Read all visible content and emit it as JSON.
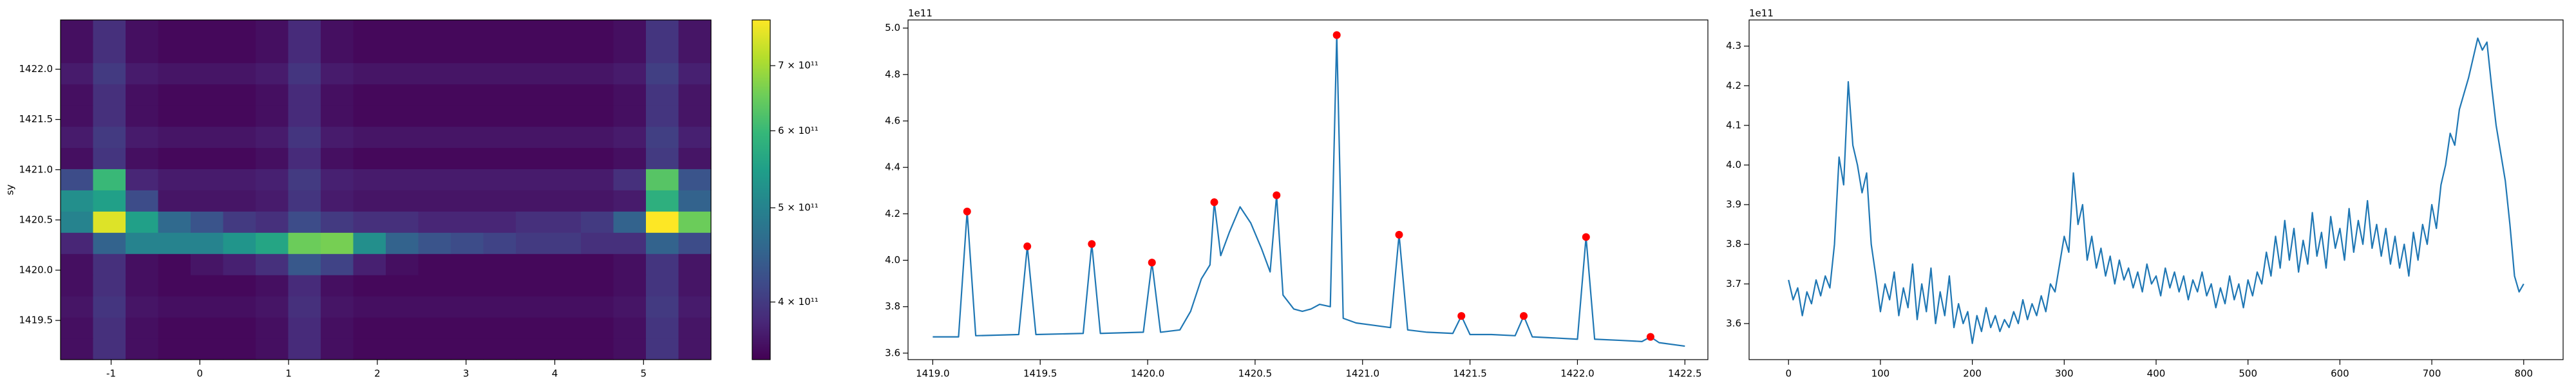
{
  "chart_data": [
    {
      "type": "heatmap",
      "ylabel": "sy",
      "colormap": "viridis",
      "clog": true,
      "xlim": [
        -1.57,
        5.76
      ],
      "ylim": [
        1419.11,
        1422.49
      ],
      "xticks": [
        -1,
        0,
        1,
        2,
        3,
        4,
        5
      ],
      "yticks": [
        1419.5,
        {
          "value": 1420,
          "label": "1420.0"
        },
        1420.5,
        {
          "value": 1421,
          "label": "1421.0"
        },
        1421.5,
        {
          "value": 1422,
          "label": "1422.0"
        }
      ],
      "clim": [
        349000000000.0,
        780000000000.0
      ],
      "cticks": [
        {
          "value": 400000000000.0,
          "label": "4 × 10¹¹"
        },
        {
          "value": 500000000000.0,
          "label": "5 × 10¹¹"
        },
        {
          "value": 600000000000.0,
          "label": "6 × 10¹¹"
        },
        {
          "value": 700000000000.0,
          "label": "7 × 10¹¹"
        }
      ],
      "xbins": [
        -1.57,
        -1.2035,
        -0.837,
        -0.4705,
        -0.104,
        0.2625,
        0.629,
        0.9955,
        1.362,
        1.7285,
        2.095,
        2.4615,
        2.828,
        3.1945,
        3.561,
        3.9275,
        4.294,
        4.6605,
        5.027,
        5.3935,
        5.76
      ],
      "ybins": [
        1419.11,
        1419.321,
        1419.532,
        1419.743,
        1419.954,
        1420.165,
        1420.376,
        1420.587,
        1420.798,
        1421.009,
        1421.22,
        1421.431,
        1421.642,
        1421.853,
        1422.064,
        1422.275,
        1422.49
      ],
      "z": [
        [
          360000000000.0,
          390000000000.0,
          360000000000.0,
          355000000000.0,
          355000000000.0,
          355000000000.0,
          360000000000.0,
          385000000000.0,
          360000000000.0,
          355000000000.0,
          355000000000.0,
          355000000000.0,
          355000000000.0,
          355000000000.0,
          355000000000.0,
          355000000000.0,
          355000000000.0,
          360000000000.0,
          395000000000.0,
          365000000000.0
        ],
        [
          360000000000.0,
          390000000000.0,
          360000000000.0,
          355000000000.0,
          355000000000.0,
          355000000000.0,
          360000000000.0,
          385000000000.0,
          360000000000.0,
          355000000000.0,
          355000000000.0,
          355000000000.0,
          355000000000.0,
          355000000000.0,
          355000000000.0,
          355000000000.0,
          355000000000.0,
          360000000000.0,
          395000000000.0,
          365000000000.0
        ],
        [
          365000000000.0,
          395000000000.0,
          365000000000.0,
          360000000000.0,
          360000000000.0,
          360000000000.0,
          365000000000.0,
          390000000000.0,
          365000000000.0,
          360000000000.0,
          360000000000.0,
          360000000000.0,
          360000000000.0,
          360000000000.0,
          360000000000.0,
          360000000000.0,
          360000000000.0,
          365000000000.0,
          400000000000.0,
          370000000000.0
        ],
        [
          360000000000.0,
          390000000000.0,
          360000000000.0,
          355000000000.0,
          355000000000.0,
          355000000000.0,
          360000000000.0,
          385000000000.0,
          360000000000.0,
          355000000000.0,
          355000000000.0,
          355000000000.0,
          355000000000.0,
          355000000000.0,
          355000000000.0,
          355000000000.0,
          355000000000.0,
          360000000000.0,
          395000000000.0,
          365000000000.0
        ],
        [
          360000000000.0,
          390000000000.0,
          360000000000.0,
          355000000000.0,
          365000000000.0,
          375000000000.0,
          390000000000.0,
          435000000000.0,
          410000000000.0,
          375000000000.0,
          360000000000.0,
          355000000000.0,
          355000000000.0,
          355000000000.0,
          355000000000.0,
          355000000000.0,
          355000000000.0,
          360000000000.0,
          395000000000.0,
          365000000000.0
        ],
        [
          380000000000.0,
          450000000000.0,
          500000000000.0,
          500000000000.0,
          500000000000.0,
          530000000000.0,
          560000000000.0,
          650000000000.0,
          660000000000.0,
          520000000000.0,
          450000000000.0,
          430000000000.0,
          420000000000.0,
          410000000000.0,
          400000000000.0,
          400000000000.0,
          390000000000.0,
          390000000000.0,
          450000000000.0,
          420000000000.0
        ],
        [
          500000000000.0,
          750000000000.0,
          550000000000.0,
          460000000000.0,
          430000000000.0,
          400000000000.0,
          390000000000.0,
          420000000000.0,
          400000000000.0,
          390000000000.0,
          390000000000.0,
          380000000000.0,
          380000000000.0,
          380000000000.0,
          390000000000.0,
          390000000000.0,
          400000000000.0,
          450000000000.0,
          780000000000.0,
          650000000000.0
        ],
        [
          520000000000.0,
          550000000000.0,
          420000000000.0,
          365000000000.0,
          365000000000.0,
          365000000000.0,
          370000000000.0,
          395000000000.0,
          370000000000.0,
          365000000000.0,
          365000000000.0,
          365000000000.0,
          365000000000.0,
          365000000000.0,
          365000000000.0,
          365000000000.0,
          365000000000.0,
          370000000000.0,
          580000000000.0,
          450000000000.0
        ],
        [
          420000000000.0,
          600000000000.0,
          380000000000.0,
          370000000000.0,
          370000000000.0,
          370000000000.0,
          375000000000.0,
          400000000000.0,
          375000000000.0,
          370000000000.0,
          370000000000.0,
          370000000000.0,
          370000000000.0,
          370000000000.0,
          370000000000.0,
          370000000000.0,
          370000000000.0,
          390000000000.0,
          630000000000.0,
          430000000000.0
        ],
        [
          360000000000.0,
          395000000000.0,
          360000000000.0,
          355000000000.0,
          355000000000.0,
          355000000000.0,
          360000000000.0,
          385000000000.0,
          360000000000.0,
          355000000000.0,
          355000000000.0,
          355000000000.0,
          355000000000.0,
          355000000000.0,
          355000000000.0,
          355000000000.0,
          355000000000.0,
          360000000000.0,
          400000000000.0,
          365000000000.0
        ],
        [
          370000000000.0,
          400000000000.0,
          370000000000.0,
          365000000000.0,
          365000000000.0,
          365000000000.0,
          370000000000.0,
          395000000000.0,
          370000000000.0,
          365000000000.0,
          365000000000.0,
          365000000000.0,
          365000000000.0,
          365000000000.0,
          365000000000.0,
          365000000000.0,
          365000000000.0,
          370000000000.0,
          405000000000.0,
          375000000000.0
        ],
        [
          360000000000.0,
          390000000000.0,
          360000000000.0,
          355000000000.0,
          355000000000.0,
          355000000000.0,
          360000000000.0,
          385000000000.0,
          360000000000.0,
          355000000000.0,
          355000000000.0,
          355000000000.0,
          355000000000.0,
          355000000000.0,
          355000000000.0,
          355000000000.0,
          355000000000.0,
          360000000000.0,
          395000000000.0,
          365000000000.0
        ],
        [
          360000000000.0,
          390000000000.0,
          360000000000.0,
          355000000000.0,
          355000000000.0,
          355000000000.0,
          360000000000.0,
          385000000000.0,
          360000000000.0,
          355000000000.0,
          355000000000.0,
          355000000000.0,
          355000000000.0,
          355000000000.0,
          355000000000.0,
          355000000000.0,
          355000000000.0,
          360000000000.0,
          395000000000.0,
          365000000000.0
        ],
        [
          370000000000.0,
          400000000000.0,
          370000000000.0,
          365000000000.0,
          365000000000.0,
          365000000000.0,
          370000000000.0,
          395000000000.0,
          370000000000.0,
          365000000000.0,
          365000000000.0,
          365000000000.0,
          365000000000.0,
          365000000000.0,
          365000000000.0,
          365000000000.0,
          365000000000.0,
          370000000000.0,
          405000000000.0,
          375000000000.0
        ],
        [
          360000000000.0,
          390000000000.0,
          360000000000.0,
          355000000000.0,
          355000000000.0,
          355000000000.0,
          360000000000.0,
          385000000000.0,
          360000000000.0,
          355000000000.0,
          355000000000.0,
          355000000000.0,
          355000000000.0,
          355000000000.0,
          355000000000.0,
          355000000000.0,
          355000000000.0,
          360000000000.0,
          395000000000.0,
          365000000000.0
        ],
        [
          360000000000.0,
          390000000000.0,
          360000000000.0,
          355000000000.0,
          355000000000.0,
          355000000000.0,
          360000000000.0,
          385000000000.0,
          360000000000.0,
          355000000000.0,
          355000000000.0,
          355000000000.0,
          355000000000.0,
          355000000000.0,
          355000000000.0,
          355000000000.0,
          355000000000.0,
          360000000000.0,
          395000000000.0,
          365000000000.0
        ]
      ]
    },
    {
      "type": "line",
      "offset_label": "1e11",
      "color": "#1f77b4",
      "peak_color": "#ff0000",
      "xlim": [
        1418.885,
        1422.607
      ],
      "ylim": [
        3.572,
        5.035
      ],
      "xticks": [
        {
          "value": 1419,
          "label": "1419.0"
        },
        1419.5,
        {
          "value": 1420,
          "label": "1420.0"
        },
        1420.5,
        {
          "value": 1421,
          "label": "1421.0"
        },
        1421.5,
        {
          "value": 1422,
          "label": "1422.0"
        },
        1422.5
      ],
      "yticks": [
        3.6,
        3.8,
        {
          "value": 4,
          "label": "4.0"
        },
        4.2,
        4.4,
        4.6,
        4.8,
        {
          "value": 5,
          "label": "5.0"
        }
      ],
      "x": [
        1419.0,
        1419.12,
        1419.16,
        1419.2,
        1419.4,
        1419.44,
        1419.48,
        1419.7,
        1419.74,
        1419.78,
        1419.98,
        1420.02,
        1420.06,
        1420.15,
        1420.2,
        1420.25,
        1420.29,
        1420.31,
        1420.34,
        1420.38,
        1420.43,
        1420.48,
        1420.53,
        1420.57,
        1420.6,
        1420.63,
        1420.68,
        1420.72,
        1420.76,
        1420.8,
        1420.85,
        1420.88,
        1420.91,
        1420.97,
        1421.05,
        1421.13,
        1421.17,
        1421.21,
        1421.3,
        1421.42,
        1421.46,
        1421.5,
        1421.6,
        1421.71,
        1421.75,
        1421.79,
        1421.9,
        1422.0,
        1422.04,
        1422.08,
        1422.2,
        1422.3,
        1422.34,
        1422.38,
        1422.5
      ],
      "values": [
        3.67,
        3.67,
        4.21,
        3.675,
        3.68,
        4.06,
        3.68,
        3.685,
        4.07,
        3.685,
        3.69,
        3.99,
        3.69,
        3.7,
        3.78,
        3.92,
        3.98,
        4.25,
        4.02,
        4.12,
        4.23,
        4.16,
        4.05,
        3.95,
        4.28,
        3.85,
        3.79,
        3.78,
        3.79,
        3.81,
        3.8,
        4.97,
        3.75,
        3.73,
        3.72,
        3.71,
        4.11,
        3.7,
        3.69,
        3.685,
        3.76,
        3.68,
        3.68,
        3.675,
        3.76,
        3.67,
        3.665,
        3.66,
        4.1,
        3.66,
        3.655,
        3.65,
        3.67,
        3.645,
        3.63
      ],
      "peaks_x": [
        1419.16,
        1419.44,
        1419.74,
        1420.02,
        1420.31,
        1420.6,
        1420.88,
        1421.17,
        1421.46,
        1421.75,
        1422.04,
        1422.34
      ],
      "peaks_values": [
        4.21,
        4.06,
        4.07,
        3.99,
        4.25,
        4.28,
        4.97,
        4.11,
        3.76,
        3.76,
        4.1,
        3.67
      ]
    },
    {
      "type": "line",
      "offset_label": "1e11",
      "color": "#1f77b4",
      "xlim": [
        -42.9,
        842.9
      ],
      "ylim": [
        3.509,
        4.366
      ],
      "xticks": [
        0,
        100,
        200,
        300,
        400,
        500,
        600,
        700,
        800
      ],
      "yticks": [
        3.6,
        3.7,
        3.8,
        3.9,
        {
          "value": 4,
          "label": "4.0"
        },
        4.1,
        4.2,
        4.3
      ],
      "x": [
        0,
        5,
        10,
        15,
        20,
        25,
        30,
        35,
        40,
        45,
        50,
        55,
        60,
        65,
        70,
        75,
        80,
        85,
        90,
        95,
        100,
        105,
        110,
        115,
        120,
        125,
        130,
        135,
        140,
        145,
        150,
        155,
        160,
        165,
        170,
        175,
        180,
        185,
        190,
        195,
        200,
        205,
        210,
        215,
        220,
        225,
        230,
        235,
        240,
        245,
        250,
        255,
        260,
        265,
        270,
        275,
        280,
        285,
        290,
        295,
        300,
        305,
        310,
        315,
        320,
        325,
        330,
        335,
        340,
        345,
        350,
        355,
        360,
        365,
        370,
        375,
        380,
        385,
        390,
        395,
        400,
        405,
        410,
        415,
        420,
        425,
        430,
        435,
        440,
        445,
        450,
        455,
        460,
        465,
        470,
        475,
        480,
        485,
        490,
        495,
        500,
        505,
        510,
        515,
        520,
        525,
        530,
        535,
        540,
        545,
        550,
        555,
        560,
        565,
        570,
        575,
        580,
        585,
        590,
        595,
        600,
        605,
        610,
        615,
        620,
        625,
        630,
        635,
        640,
        645,
        650,
        655,
        660,
        665,
        670,
        675,
        680,
        685,
        690,
        695,
        700,
        705,
        710,
        715,
        720,
        725,
        730,
        735,
        740,
        745,
        750,
        755,
        760,
        765,
        770,
        775,
        780,
        785,
        790,
        795,
        800
      ],
      "values": [
        3.71,
        3.66,
        3.69,
        3.62,
        3.68,
        3.65,
        3.71,
        3.67,
        3.72,
        3.69,
        3.8,
        4.02,
        3.95,
        4.21,
        4.05,
        4.0,
        3.93,
        3.98,
        3.8,
        3.72,
        3.63,
        3.7,
        3.66,
        3.73,
        3.62,
        3.69,
        3.64,
        3.75,
        3.61,
        3.7,
        3.63,
        3.74,
        3.6,
        3.68,
        3.62,
        3.72,
        3.59,
        3.65,
        3.6,
        3.63,
        3.55,
        3.62,
        3.58,
        3.64,
        3.59,
        3.62,
        3.58,
        3.61,
        3.59,
        3.63,
        3.6,
        3.66,
        3.61,
        3.65,
        3.62,
        3.67,
        3.63,
        3.7,
        3.68,
        3.75,
        3.82,
        3.78,
        3.98,
        3.85,
        3.9,
        3.76,
        3.82,
        3.74,
        3.79,
        3.72,
        3.77,
        3.7,
        3.76,
        3.71,
        3.74,
        3.69,
        3.73,
        3.68,
        3.75,
        3.7,
        3.72,
        3.67,
        3.74,
        3.69,
        3.73,
        3.68,
        3.72,
        3.66,
        3.71,
        3.68,
        3.73,
        3.67,
        3.7,
        3.64,
        3.69,
        3.65,
        3.72,
        3.66,
        3.7,
        3.64,
        3.71,
        3.67,
        3.73,
        3.7,
        3.78,
        3.72,
        3.82,
        3.74,
        3.86,
        3.76,
        3.84,
        3.73,
        3.81,
        3.75,
        3.88,
        3.77,
        3.83,
        3.74,
        3.87,
        3.79,
        3.84,
        3.76,
        3.89,
        3.78,
        3.86,
        3.8,
        3.91,
        3.79,
        3.85,
        3.77,
        3.84,
        3.75,
        3.82,
        3.74,
        3.8,
        3.72,
        3.83,
        3.76,
        3.85,
        3.8,
        3.9,
        3.84,
        3.95,
        4.0,
        4.08,
        4.05,
        4.14,
        4.18,
        4.22,
        4.27,
        4.32,
        4.29,
        4.31,
        4.2,
        4.1,
        4.03,
        3.96,
        3.85,
        3.72,
        3.68,
        3.7
      ]
    }
  ]
}
